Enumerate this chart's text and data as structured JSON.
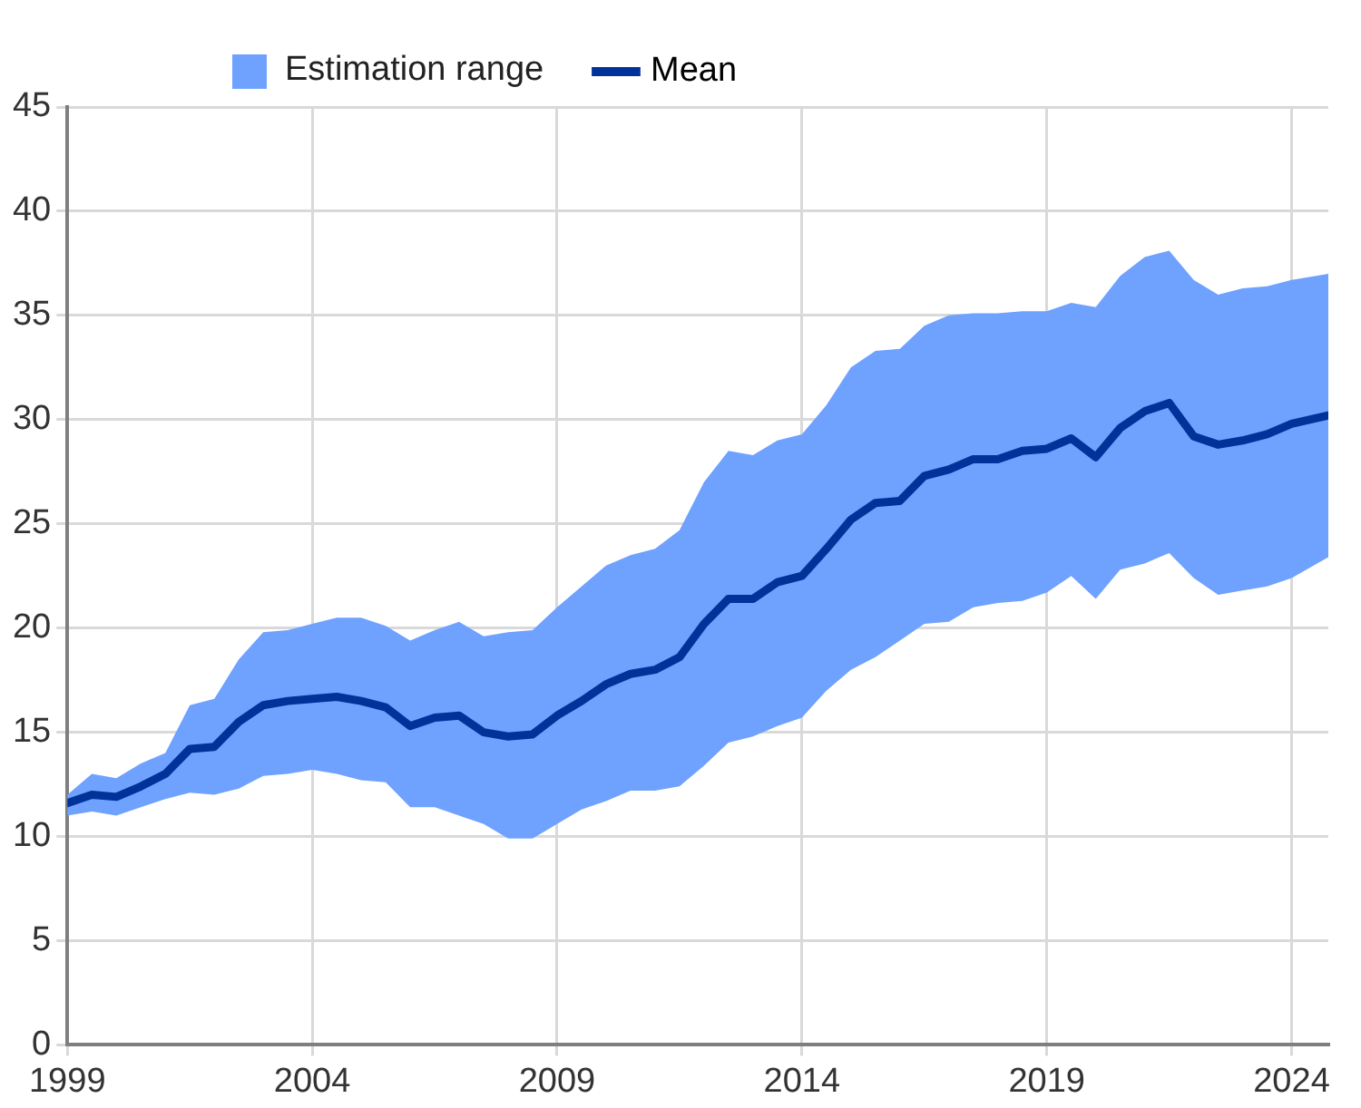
{
  "chart_data": {
    "type": "line",
    "x": [
      1999,
      1999.5,
      2000,
      2000.5,
      2001,
      2001.5,
      2002,
      2002.5,
      2003,
      2003.5,
      2004,
      2004.5,
      2005,
      2005.5,
      2006,
      2006.5,
      2007,
      2007.5,
      2008,
      2008.5,
      2009,
      2009.5,
      2010,
      2010.5,
      2011,
      2011.5,
      2012,
      2012.5,
      2013,
      2013.5,
      2014,
      2014.5,
      2015,
      2015.5,
      2016,
      2016.5,
      2017,
      2017.5,
      2018,
      2018.5,
      2019,
      2019.5,
      2020,
      2020.5,
      2021,
      2021.5,
      2022,
      2022.5,
      2023,
      2023.5,
      2024,
      2024.75
    ],
    "series": [
      {
        "type": "line",
        "name": "Mean",
        "color": "#003399",
        "values": [
          11.6,
          12.0,
          11.9,
          12.4,
          13.0,
          14.2,
          14.3,
          15.5,
          16.3,
          16.5,
          16.6,
          16.7,
          16.5,
          16.2,
          15.3,
          15.7,
          15.8,
          15.0,
          14.8,
          14.9,
          15.8,
          16.5,
          17.3,
          17.8,
          18.0,
          18.6,
          20.2,
          21.4,
          21.4,
          22.2,
          22.5,
          23.8,
          25.2,
          26.0,
          26.1,
          27.3,
          27.6,
          28.1,
          28.1,
          28.5,
          28.6,
          29.1,
          28.2,
          29.6,
          30.4,
          30.8,
          29.2,
          28.8,
          29.0,
          29.3,
          29.8,
          30.2
        ],
        "lower": [
          11.0,
          11.2,
          11.0,
          11.4,
          11.8,
          12.1,
          12.0,
          12.3,
          12.9,
          13.0,
          13.2,
          13.0,
          12.7,
          12.6,
          11.4,
          11.4,
          11.0,
          10.6,
          9.9,
          9.9,
          10.6,
          11.3,
          11.7,
          12.2,
          12.2,
          12.4,
          13.4,
          14.5,
          14.8,
          15.3,
          15.7,
          17.0,
          18.0,
          18.6,
          19.4,
          20.2,
          20.3,
          21.0,
          21.2,
          21.3,
          21.7,
          22.5,
          21.4,
          22.8,
          23.1,
          23.6,
          22.4,
          21.6,
          21.8,
          22.0,
          22.4,
          23.4
        ],
        "upper": [
          12.0,
          13.0,
          12.8,
          13.5,
          14.0,
          16.3,
          16.6,
          18.5,
          19.8,
          19.9,
          20.2,
          20.5,
          20.5,
          20.1,
          19.4,
          19.9,
          20.3,
          19.6,
          19.8,
          19.9,
          21.0,
          22.0,
          23.0,
          23.5,
          23.8,
          24.7,
          27.0,
          28.5,
          28.3,
          29.0,
          29.3,
          30.7,
          32.5,
          33.3,
          33.4,
          34.5,
          35.0,
          35.1,
          35.1,
          35.2,
          35.2,
          35.6,
          35.4,
          36.9,
          37.8,
          38.1,
          36.7,
          36.0,
          36.3,
          36.4,
          36.7,
          37.0
        ]
      }
    ],
    "annotations": [
      "Estimation range"
    ],
    "xlim": [
      1999,
      2024.75
    ],
    "xticks": [
      1999,
      2004,
      2009,
      2014,
      2019,
      2024
    ],
    "ylim": [
      0,
      45
    ],
    "yticks": [
      0,
      5,
      10,
      15,
      20,
      25,
      30,
      35,
      40,
      45
    ],
    "grid": true,
    "legend": "top",
    "marker": "none",
    "line_style": "solid"
  }
}
